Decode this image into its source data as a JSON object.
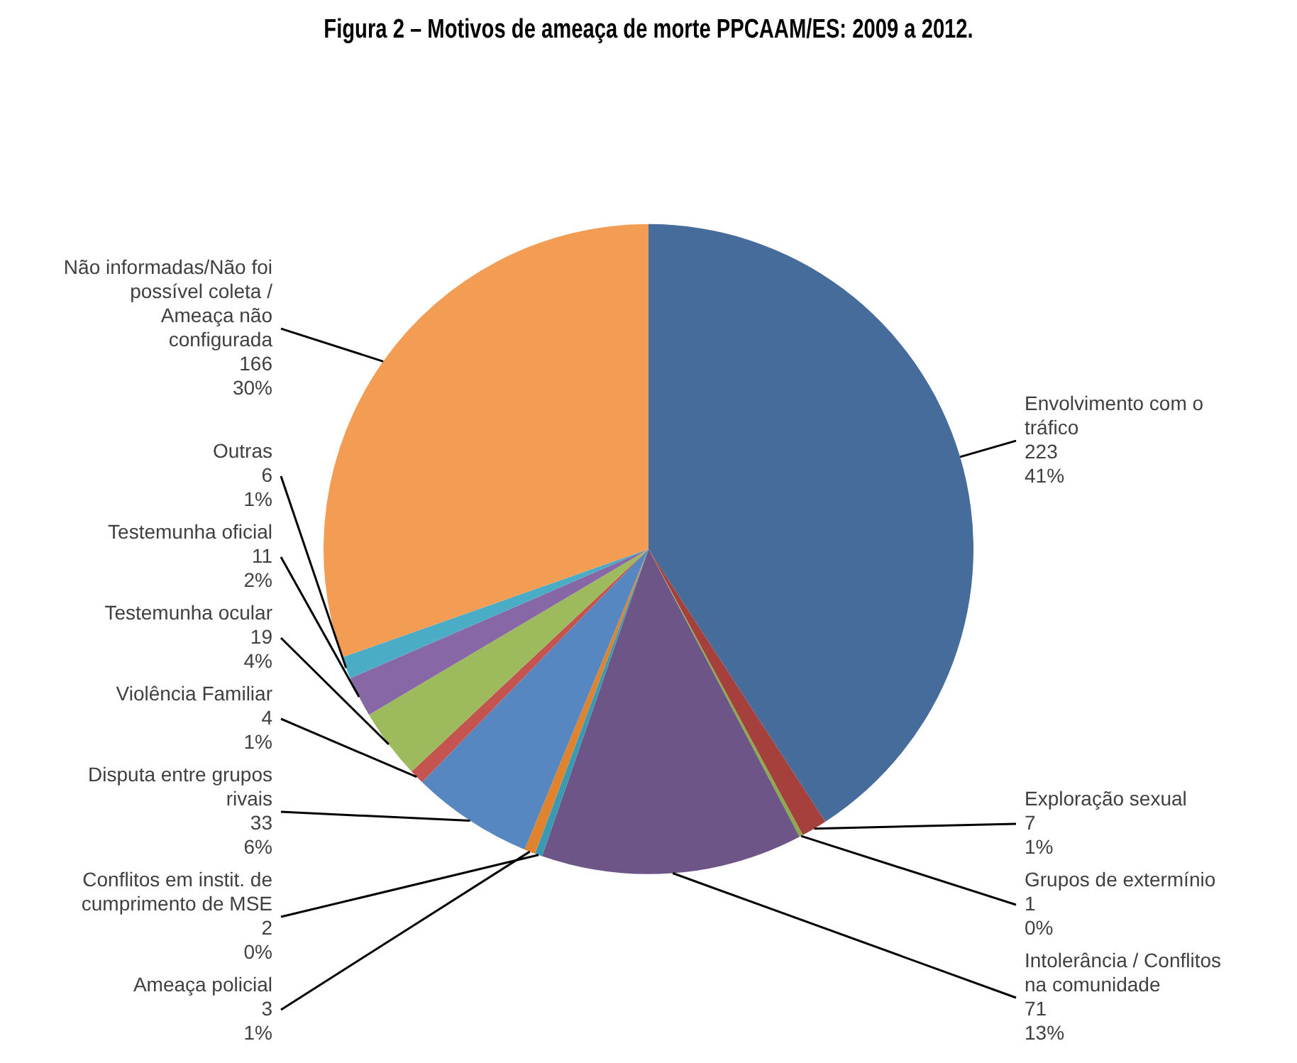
{
  "chart_data": {
    "type": "pie",
    "title": "Figura 2 – Motivos de ameaça de morte PPCAAM/ES: 2009 a 2012.",
    "categories": [
      "Envolvimento com o tráfico",
      "Exploração sexual",
      "Grupos de extermínio",
      "Intolerância / Conflitos na comunidade",
      "Conflitos em instit. de cumprimento de MSE",
      "Ameaça policial",
      "Disputa entre grupos rivais",
      "Violência Familiar",
      "Testemunha ocular",
      "Testemunha oficial",
      "Outras",
      "Não informadas/Não foi possível coleta / Ameaça não configurada"
    ],
    "values": [
      223,
      7,
      1,
      71,
      2,
      3,
      33,
      4,
      19,
      11,
      6,
      166
    ],
    "colors": [
      "#466c9c",
      "#a6403d",
      "#8aab4c",
      "#6d5687",
      "#3a9ab3",
      "#e0832f",
      "#5687c0",
      "#c4544f",
      "#9dbb5c",
      "#8767a6",
      "#4bacc6",
      "#f39c54"
    ],
    "value_labels": [
      "223\n41%",
      "7\n1%",
      "1\n0%",
      "71\n13%",
      "2\n0%",
      "3\n1%",
      "33\n6%",
      "4\n1%",
      "19\n4%",
      "11\n2%",
      "6\n1%",
      "166\n30%"
    ]
  }
}
